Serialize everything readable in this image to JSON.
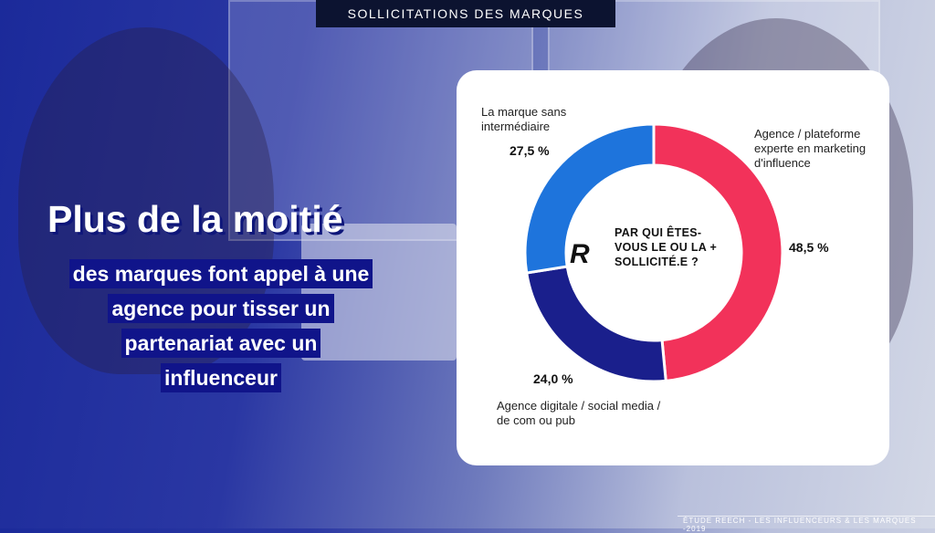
{
  "top_tag": "SOLLICITATIONS DES MARQUES",
  "headline": {
    "title": "Plus de la moitié",
    "lines": [
      "des marques font appel à une",
      "agence pour tisser un",
      "partenariat avec un",
      "influenceur"
    ]
  },
  "chart_data": {
    "type": "pie",
    "variant": "donut",
    "center_text": [
      "PAR QUI ÊTES-",
      "VOUS LE OU LA +",
      "SOLLICITÉ.E ?"
    ],
    "logo_text": "R",
    "slices": [
      {
        "label_lines": [
          "Agence / plateforme",
          "experte en marketing",
          "d'influence"
        ],
        "value": 48.5,
        "value_label": "48,5 %",
        "color": "#f2325a"
      },
      {
        "label_lines": [
          "Agence digitale / social media /",
          "de com ou pub"
        ],
        "value": 24.0,
        "value_label": "24,0 %",
        "color": "#1a1f8c"
      },
      {
        "label_lines": [
          "La marque sans",
          "intermédiaire"
        ],
        "value": 27.5,
        "value_label": "27,5 %",
        "color": "#1e74dc"
      }
    ]
  },
  "footer": "ÉTUDE REECH - LES INFLUENCEURS & LES MARQUES -2019"
}
